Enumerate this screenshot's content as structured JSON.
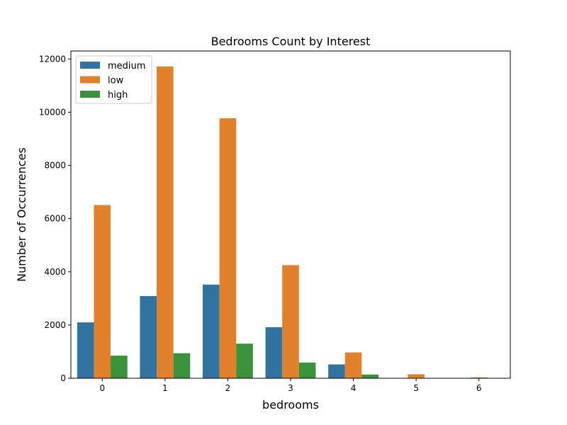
{
  "chart_data": {
    "type": "bar",
    "title": "Bedrooms Count by Interest",
    "xlabel": "bedrooms",
    "ylabel": "Number of Occurrences",
    "categories": [
      "0",
      "1",
      "2",
      "3",
      "4",
      "5",
      "6"
    ],
    "series": [
      {
        "name": "medium",
        "color": "#3274a1",
        "values": [
          2100,
          3090,
          3520,
          1920,
          520,
          5,
          0
        ]
      },
      {
        "name": "low",
        "color": "#e1812c",
        "values": [
          6510,
          11720,
          9770,
          4250,
          970,
          150,
          30
        ]
      },
      {
        "name": "high",
        "color": "#3a923a",
        "values": [
          850,
          940,
          1300,
          590,
          140,
          0,
          0
        ]
      }
    ],
    "ylim": [
      0,
      12300
    ],
    "yticks": [
      0,
      2000,
      4000,
      6000,
      8000,
      10000,
      12000
    ],
    "legend_position": "top-left",
    "grid": false
  }
}
